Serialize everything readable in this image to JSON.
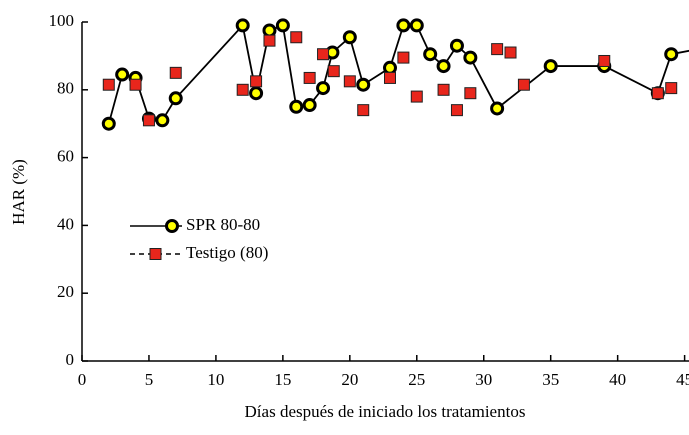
{
  "chart_data": {
    "type": "line",
    "xlabel": "Días después de iniciado los tratamientos",
    "ylabel": "HAR (%)",
    "xlim": [
      0,
      46
    ],
    "xticks": [
      0,
      5,
      10,
      15,
      20,
      25,
      30,
      35,
      40,
      45
    ],
    "ylim": [
      0,
      100
    ],
    "yticks": [
      0,
      20,
      40,
      60,
      80,
      100
    ],
    "series": [
      {
        "name": "SPR 80-80",
        "color": "#000000",
        "marker_color": "#ffff00",
        "marker": "circle",
        "line": true,
        "x": [
          2,
          3,
          4,
          5,
          6,
          7,
          12,
          13,
          14,
          15,
          16,
          17,
          18,
          18.7,
          20,
          21,
          23,
          24,
          25,
          26,
          27,
          28,
          29,
          31,
          35,
          39,
          43,
          44,
          46
        ],
        "values": [
          70,
          84.5,
          83.5,
          71.5,
          71,
          77.5,
          99,
          79,
          97.5,
          99,
          75,
          75.5,
          80.5,
          91,
          95.5,
          81.5,
          86.5,
          99,
          99,
          90.5,
          87,
          93,
          89.5,
          74.5,
          87,
          87,
          79,
          90.5,
          92
        ]
      },
      {
        "name": "Testigo (80)",
        "color": "#e8261c",
        "marker": "square",
        "line": false,
        "x": [
          2,
          4,
          5,
          7,
          12,
          13,
          14,
          16,
          17,
          18,
          18.8,
          20,
          21,
          23,
          24,
          25,
          27,
          28,
          29,
          31,
          32,
          33,
          39,
          43,
          44,
          46
        ],
        "values": [
          81.5,
          81.5,
          71,
          85,
          80,
          82.5,
          94.5,
          95.5,
          83.5,
          90.5,
          85.5,
          82.5,
          74,
          83.5,
          89.5,
          78,
          80,
          74,
          79,
          92,
          91,
          81.5,
          88.5,
          79,
          80.5,
          81.5
        ]
      }
    ]
  }
}
